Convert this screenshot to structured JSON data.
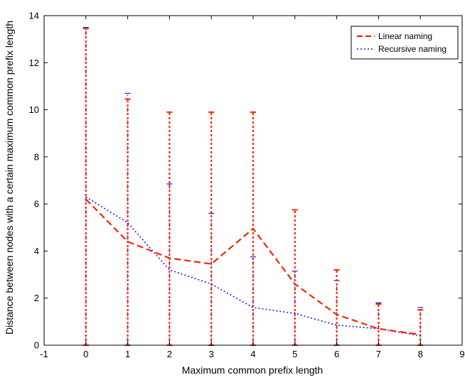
{
  "chart_data": {
    "type": "line",
    "xlabel": "Maximum common prefix length",
    "ylabel": "Distance between nodes with a certain maximum common prefix length",
    "xlim": [
      -1,
      9
    ],
    "ylim": [
      0,
      14
    ],
    "xticks": [
      -1,
      0,
      1,
      2,
      3,
      4,
      5,
      6,
      7,
      8,
      9
    ],
    "yticks": [
      0,
      2,
      4,
      6,
      8,
      10,
      12,
      14
    ],
    "grid": false,
    "legend_position": "top-right",
    "series": [
      {
        "name": "Linear naming",
        "color": "#ff2200",
        "style": "dashed",
        "x": [
          0,
          1,
          2,
          3,
          4,
          5,
          6,
          7,
          8
        ],
        "y": [
          6.2,
          4.4,
          3.7,
          3.45,
          4.95,
          2.6,
          1.3,
          0.7,
          0.45
        ],
        "error_min": [
          0,
          0,
          0,
          0,
          0,
          0,
          0,
          0,
          0
        ],
        "error_max": [
          13.45,
          10.45,
          9.9,
          9.9,
          9.9,
          5.75,
          3.2,
          1.75,
          1.5
        ]
      },
      {
        "name": "Recursive naming",
        "color": "#1a1aff",
        "style": "dotted",
        "x": [
          0,
          1,
          2,
          3,
          4,
          5,
          6,
          7,
          8
        ],
        "y": [
          6.3,
          5.2,
          3.2,
          2.6,
          1.6,
          1.35,
          0.85,
          0.7,
          0.4
        ],
        "error_min": [
          0,
          0,
          0,
          0,
          0,
          0,
          0,
          0,
          0
        ],
        "error_max": [
          13.5,
          10.7,
          6.85,
          5.6,
          3.75,
          3.15,
          2.75,
          1.8,
          1.6
        ]
      }
    ]
  }
}
